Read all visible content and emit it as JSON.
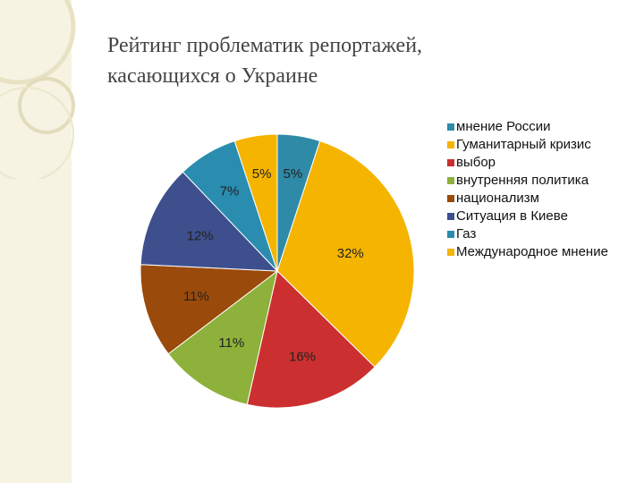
{
  "title": {
    "line1": "Рейтинг проблематик репортажей,",
    "line2": "касающихся о Украине"
  },
  "chart_data": {
    "type": "pie",
    "categories": [
      "мнение России",
      "Гуманитарный кризис",
      "выбор",
      "внутренняя политика",
      "национализм",
      "Ситуация в Киеве",
      "Газ",
      "Международное мнение"
    ],
    "values": [
      5,
      32,
      16,
      11,
      11,
      12,
      7,
      5
    ],
    "labels": [
      "5%",
      "32%",
      "16%",
      "11%",
      "11%",
      "12%",
      "7%",
      "5%"
    ],
    "colors": [
      "#2f8aa8",
      "#f5b400",
      "#cc2f2f",
      "#8db13a",
      "#9a4a0a",
      "#3e4f8e",
      "#2a8db0",
      "#f5b400"
    ],
    "legend_position": "right",
    "start_angle": "top, clockwise"
  }
}
